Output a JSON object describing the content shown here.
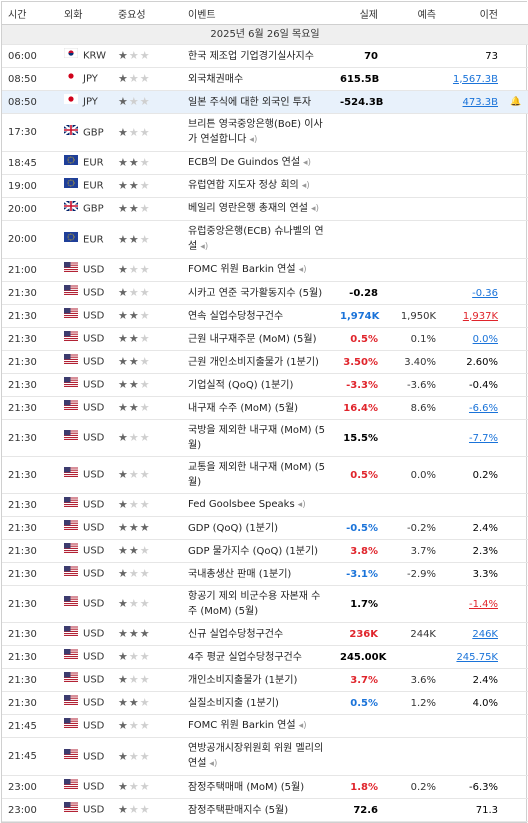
{
  "header": {
    "time": "시간",
    "currency": "외화",
    "importance": "중요성",
    "event": "이벤트",
    "actual": "실제",
    "forecast": "예측",
    "previous": "이전"
  },
  "date": "2025년 6월 26일 목요일",
  "rows": [
    {
      "time": "06:00",
      "currency": "KRW",
      "importance": 1,
      "event": "한국 제조업 기업경기실사지수",
      "actual": "70",
      "actual_color": "#000000",
      "forecast": null,
      "previous": "73",
      "previous_color": "#000000"
    },
    {
      "time": "08:50",
      "currency": "JPY",
      "importance": 1,
      "event": "외국채권매수",
      "actual": "615.5B",
      "actual_color": "#000000",
      "forecast": null,
      "previous": "1,567.3B",
      "previous_color": "#1a73d9"
    },
    {
      "time": "08:50",
      "currency": "JPY",
      "importance": 1,
      "event": "일본 주식에 대한 외국인 투자",
      "actual": "-524.3B",
      "actual_color": "#000000",
      "forecast": null,
      "previous": "473.3B",
      "previous_color": "#1a73d9"
    },
    {
      "time": "17:30",
      "currency": "GBP",
      "importance": 1,
      "event": "브리튼 영국중앙은행(BoE) 이사가 연설합니다",
      "actual": null,
      "forecast": null,
      "previous": null
    },
    {
      "time": "18:45",
      "currency": "EUR",
      "importance": 2,
      "event": "ECB의 De Guindos 연설",
      "actual": null,
      "forecast": null,
      "previous": null
    },
    {
      "time": "19:00",
      "currency": "EUR",
      "importance": 2,
      "event": "유럽연합 지도자 정상 회의",
      "actual": null,
      "forecast": null,
      "previous": null
    },
    {
      "time": "20:00",
      "currency": "GBP",
      "importance": 2,
      "event": "베일리 영란은행 총재의 연설",
      "actual": null,
      "forecast": null,
      "previous": null
    },
    {
      "time": "20:00",
      "currency": "EUR",
      "importance": 2,
      "event": "유럽중앙은행(ECB) 슈나벨의 연설",
      "actual": null,
      "forecast": null,
      "previous": null
    },
    {
      "time": "21:00",
      "currency": "USD",
      "importance": 1,
      "event": "FOMC 위원 Barkin 연설",
      "actual": null,
      "forecast": null,
      "previous": null
    },
    {
      "time": "21:30",
      "currency": "USD",
      "importance": 1,
      "event": "시카고 연준 국가활동지수 (5월)",
      "actual": "-0.28",
      "actual_color": "#000000",
      "forecast": null,
      "previous": "-0.36",
      "previous_color": "#1a73d9"
    },
    {
      "time": "21:30",
      "currency": "USD",
      "importance": 2,
      "event": "연속 실업수당청구건수",
      "actual": "1,974K",
      "actual_color": "#1a73d9",
      "forecast": "1,950K",
      "previous": "1,937K",
      "previous_color": "#e0242b"
    },
    {
      "time": "21:30",
      "currency": "USD",
      "importance": 2,
      "event": "근원 내구재주문 (MoM) (5월)",
      "actual": "0.5%",
      "actual_color": "#e0242b",
      "forecast": "0.1%",
      "previous": "0.0%",
      "previous_color": "#1a73d9"
    },
    {
      "time": "21:30",
      "currency": "USD",
      "importance": 2,
      "event": "근원 개인소비지출물가 (1분기)",
      "actual": "3.50%",
      "actual_color": "#e0242b",
      "forecast": "3.40%",
      "previous": "2.60%",
      "previous_color": "#000000"
    },
    {
      "time": "21:30",
      "currency": "USD",
      "importance": 2,
      "event": "기업실적 (QoQ) (1분기)",
      "actual": "-3.3%",
      "actual_color": "#e0242b",
      "forecast": "-3.6%",
      "previous": "-0.4%",
      "previous_color": "#000000"
    },
    {
      "time": "21:30",
      "currency": "USD",
      "importance": 2,
      "event": "내구재 수주 (MoM) (5월)",
      "actual": "16.4%",
      "actual_color": "#e0242b",
      "forecast": "8.6%",
      "previous": "-6.6%",
      "previous_color": "#1a73d9"
    },
    {
      "time": "21:30",
      "currency": "USD",
      "importance": 1,
      "event": "국방을 제외한 내구재 (MoM) (5월)",
      "actual": "15.5%",
      "actual_color": "#000000",
      "forecast": null,
      "previous": "-7.7%",
      "previous_color": "#1a73d9"
    },
    {
      "time": "21:30",
      "currency": "USD",
      "importance": 1,
      "event": "교통을 제외한 내구재 (MoM) (5월)",
      "actual": "0.5%",
      "actual_color": "#e0242b",
      "forecast": "0.0%",
      "previous": "0.2%",
      "previous_color": "#000000"
    },
    {
      "time": "21:30",
      "currency": "USD",
      "importance": 1,
      "event": "Fed Goolsbee Speaks",
      "actual": null,
      "forecast": null,
      "previous": null
    },
    {
      "time": "21:30",
      "currency": "USD",
      "importance": 3,
      "event": "GDP (QoQ) (1분기)",
      "actual": "-0.5%",
      "actual_color": "#1a73d9",
      "forecast": "-0.2%",
      "previous": "2.4%",
      "previous_color": "#000000"
    },
    {
      "time": "21:30",
      "currency": "USD",
      "importance": 2,
      "event": "GDP 물가지수 (QoQ) (1분기)",
      "actual": "3.8%",
      "actual_color": "#e0242b",
      "forecast": "3.7%",
      "previous": "2.3%",
      "previous_color": "#000000"
    },
    {
      "time": "21:30",
      "currency": "USD",
      "importance": 1,
      "event": "국내총생산 판매 (1분기)",
      "actual": "-3.1%",
      "actual_color": "#1a73d9",
      "forecast": "-2.9%",
      "previous": "3.3%",
      "previous_color": "#000000"
    },
    {
      "time": "21:30",
      "currency": "USD",
      "importance": 1,
      "event": "항공기 제외 비군수용 자본재 수주 (MoM) (5월)",
      "actual": "1.7%",
      "actual_color": "#000000",
      "forecast": null,
      "previous": "-1.4%",
      "previous_color": "#e0242b"
    },
    {
      "time": "21:30",
      "currency": "USD",
      "importance": 3,
      "event": "신규 실업수당청구건수",
      "actual": "236K",
      "actual_color": "#e0242b",
      "forecast": "244K",
      "previous": "246K",
      "previous_color": "#1a73d9"
    },
    {
      "time": "21:30",
      "currency": "USD",
      "importance": 1,
      "event": "4주 평균 실업수당청구건수",
      "actual": "245.00K",
      "actual_color": "#000000",
      "forecast": null,
      "previous": "245.75K",
      "previous_color": "#1a73d9"
    },
    {
      "time": "21:30",
      "currency": "USD",
      "importance": 1,
      "event": "개인소비지출물가 (1분기)",
      "actual": "3.7%",
      "actual_color": "#e0242b",
      "forecast": "3.6%",
      "previous": "2.4%",
      "previous_color": "#000000"
    },
    {
      "time": "21:30",
      "currency": "USD",
      "importance": 2,
      "event": "실질소비지출 (1분기)",
      "actual": "0.5%",
      "actual_color": "#1a73d9",
      "forecast": "1.2%",
      "previous": "4.0%",
      "previous_color": "#000000"
    },
    {
      "time": "21:45",
      "currency": "USD",
      "importance": 1,
      "event": "FOMC 위원 Barkin 연설",
      "actual": null,
      "forecast": null,
      "previous": null
    },
    {
      "time": "21:45",
      "currency": "USD",
      "importance": 1,
      "event": "연방공개시장위원회 위원 멜리의 연설",
      "actual": null,
      "forecast": null,
      "previous": null
    },
    {
      "time": "23:00",
      "currency": "USD",
      "importance": 1,
      "event": "잠정주택매매 (MoM) (5월)",
      "actual": "1.8%",
      "actual_color": "#e0242b",
      "forecast": "0.2%",
      "previous": "-6.3%",
      "previous_color": "#000000"
    },
    {
      "time": "23:00",
      "currency": "USD",
      "importance": 1,
      "event": "잠정주택판매지수 (5월)",
      "actual": "72.6",
      "actual_color": "#000000",
      "forecast": null,
      "previous": "71.3",
      "previous_color": "#000000"
    }
  ]
}
